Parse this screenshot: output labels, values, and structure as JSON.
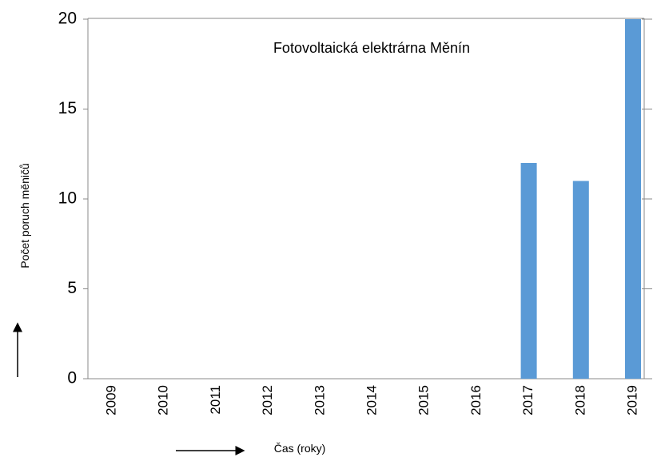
{
  "chart_data": {
    "type": "bar",
    "title": "Fotovoltaická elektrárna Měnín",
    "x_label": "Čas (roky)",
    "y_label": "Počet poruch měničů",
    "categories": [
      "2009",
      "2010",
      "2011",
      "2012",
      "2013",
      "2014",
      "2015",
      "2016",
      "2017",
      "2018",
      "2019"
    ],
    "values": [
      0,
      0,
      0,
      0,
      0,
      0,
      0,
      0,
      12,
      11,
      20
    ],
    "color": "#5a9ad6",
    "ylim": [
      0,
      20
    ],
    "yticks": [
      0,
      5,
      10,
      15,
      20
    ]
  }
}
